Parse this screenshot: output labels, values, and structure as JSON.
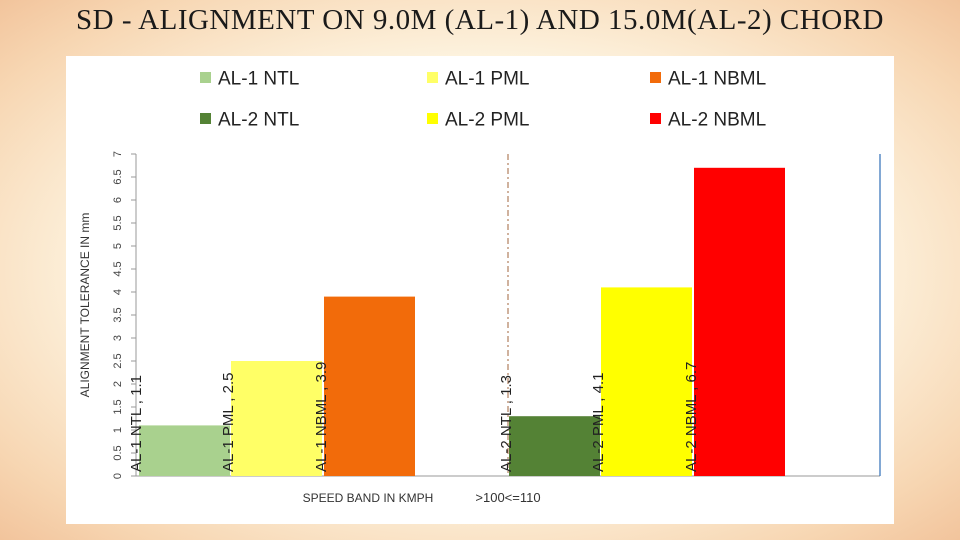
{
  "title": "SD - ALIGNMENT ON 9.0M (AL-1) AND 15.0M(AL-2) CHORD",
  "chart_data": {
    "type": "bar",
    "ylabel": "ALIGNMENT TOLERANCE IN mm",
    "ylim": [
      0,
      7
    ],
    "yticks": [
      "0",
      "0.5",
      "1",
      "1.5",
      "2",
      "2.5",
      "3",
      "3.5",
      "4",
      "4.5",
      "5",
      "5.5",
      "6",
      "6.5",
      "7"
    ],
    "grid": false,
    "legend_position": "top",
    "groups": [
      {
        "xlabel": "SPEED BAND IN KMPH"
      },
      {
        "xlabel": ">100<=110"
      }
    ],
    "series": [
      {
        "name": "AL-1 NTL",
        "group": 0,
        "value": 1.1,
        "color": "#a9d18e",
        "label": "AL-1 NTL , 1.1"
      },
      {
        "name": "AL-1 PML",
        "group": 0,
        "value": 2.5,
        "color": "#ffff66",
        "label": "AL-1 PML , 2.5"
      },
      {
        "name": "AL-1 NBML",
        "group": 0,
        "value": 3.9,
        "color": "#f26b0a",
        "label": "AL-1 NBML , 3.9"
      },
      {
        "name": "AL-2 NTL",
        "group": 1,
        "value": 1.3,
        "color": "#548235",
        "label": "AL-2 NTL , 1.3"
      },
      {
        "name": "AL-2 PML",
        "group": 1,
        "value": 4.1,
        "color": "#ffff00",
        "label": "AL-2 PML , 4.1"
      },
      {
        "name": "AL-2 NBML",
        "group": 1,
        "value": 6.7,
        "color": "#ff0000",
        "label": "AL-2 NBML , 6.7"
      }
    ]
  }
}
